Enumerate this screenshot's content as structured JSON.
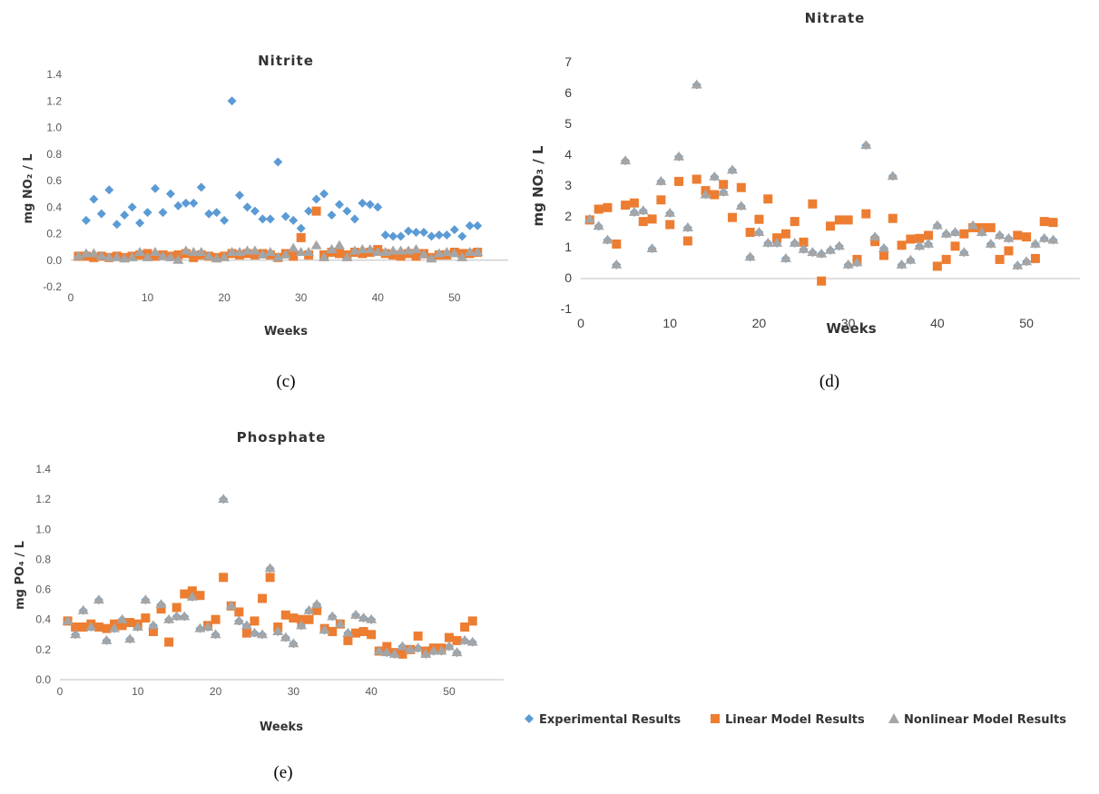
{
  "legend": {
    "experimental": "Experimental Results",
    "linear": "Linear Model Results",
    "nonlinear": "Nonlinear Model Results"
  },
  "colors": {
    "experimental": "#5B9BD5",
    "linear": "#ED7D31",
    "nonlinear": "#A5A5A5"
  },
  "chart_data": [
    {
      "type": "scatter",
      "id": "nitrite",
      "title": "Nitrite",
      "xlabel": "Weeks",
      "ylabel": "mg NO₂ / L",
      "caption": "(c)",
      "xlim": [
        0,
        57
      ],
      "ylim": [
        -0.2,
        1.4
      ],
      "xticks": [
        0,
        10,
        20,
        30,
        40,
        50
      ],
      "yticks": [
        "-0.2",
        "0.0",
        "0.2",
        "0.4",
        "0.6",
        "0.8",
        "1.0",
        "1.2",
        "1.4"
      ],
      "x": [
        1,
        2,
        3,
        4,
        5,
        6,
        7,
        8,
        9,
        10,
        11,
        12,
        13,
        14,
        15,
        16,
        17,
        18,
        19,
        20,
        21,
        22,
        23,
        24,
        25,
        26,
        27,
        28,
        29,
        30,
        31,
        32,
        33,
        34,
        35,
        36,
        37,
        38,
        39,
        40,
        41,
        42,
        43,
        44,
        45,
        46,
        47,
        48,
        49,
        50,
        51,
        52,
        53
      ],
      "series": [
        {
          "name": "Experimental Results",
          "values": [
            0.03,
            0.3,
            0.46,
            0.35,
            0.53,
            0.27,
            0.34,
            0.4,
            0.28,
            0.36,
            0.54,
            0.36,
            0.5,
            0.41,
            0.43,
            0.43,
            0.55,
            0.35,
            0.36,
            0.3,
            1.2,
            0.49,
            0.4,
            0.37,
            0.31,
            0.31,
            0.74,
            0.33,
            0.3,
            0.24,
            0.37,
            0.46,
            0.5,
            0.34,
            0.42,
            0.37,
            0.31,
            0.43,
            0.42,
            0.4,
            0.19,
            0.18,
            0.18,
            0.22,
            0.21,
            0.21,
            0.18,
            0.19,
            0.19,
            0.23,
            0.18,
            0.26,
            0.26
          ]
        },
        {
          "name": "Linear Model Results",
          "values": [
            0.03,
            0.03,
            0.02,
            0.03,
            0.02,
            0.03,
            0.02,
            0.03,
            0.04,
            0.05,
            0.03,
            0.04,
            0.03,
            0.04,
            0.05,
            0.02,
            0.04,
            0.03,
            0.02,
            0.03,
            0.05,
            0.04,
            0.05,
            0.04,
            0.05,
            0.04,
            0.02,
            0.05,
            0.03,
            0.17,
            0.04,
            0.37,
            0.04,
            0.06,
            0.05,
            0.04,
            0.06,
            0.05,
            0.06,
            0.08,
            0.05,
            0.04,
            0.03,
            0.05,
            0.03,
            0.05,
            0.02,
            0.04,
            0.04,
            0.06,
            0.05,
            0.05,
            0.06
          ]
        },
        {
          "name": "Nonlinear Model Results",
          "values": [
            0.03,
            0.05,
            0.05,
            0.03,
            0.02,
            0.02,
            0.01,
            0.02,
            0.06,
            0.02,
            0.06,
            0.03,
            0.02,
            0.0,
            0.07,
            0.06,
            0.06,
            0.03,
            0.01,
            0.02,
            0.06,
            0.06,
            0.07,
            0.07,
            0.04,
            0.06,
            0.02,
            0.04,
            0.09,
            0.06,
            0.06,
            0.11,
            0.02,
            0.08,
            0.11,
            0.02,
            0.07,
            0.08,
            0.08,
            0.06,
            0.06,
            0.07,
            0.07,
            0.07,
            0.08,
            0.04,
            0.01,
            0.05,
            0.06,
            0.05,
            0.02,
            0.06,
            0.06
          ]
        }
      ]
    },
    {
      "type": "scatter",
      "id": "nitrate",
      "title": "Nitrate",
      "xlabel": "Weeks",
      "ylabel": "mg NO₃ / L",
      "caption": "(d)",
      "xlim": [
        0,
        56
      ],
      "ylim": [
        -1,
        7
      ],
      "xticks": [
        0,
        10,
        20,
        30,
        40,
        50
      ],
      "yticks": [
        "-1",
        "0",
        "1",
        "2",
        "3",
        "4",
        "5",
        "6",
        "7"
      ],
      "x": [
        1,
        2,
        3,
        4,
        5,
        6,
        7,
        8,
        9,
        10,
        11,
        12,
        13,
        14,
        15,
        16,
        17,
        18,
        19,
        20,
        21,
        22,
        23,
        24,
        25,
        26,
        27,
        28,
        29,
        30,
        31,
        32,
        33,
        34,
        35,
        36,
        37,
        38,
        39,
        40,
        41,
        42,
        43,
        44,
        45,
        46,
        47,
        48,
        49,
        50,
        51,
        52,
        53
      ],
      "series": [
        {
          "name": "Experimental Results",
          "values": [
            1.92,
            1.7,
            1.25,
            0.45,
            3.82,
            2.15,
            2.2,
            0.97,
            3.15,
            2.12,
            3.95,
            1.65,
            6.28,
            2.72,
            3.3,
            2.8,
            3.52,
            2.35,
            0.7,
            1.5,
            1.15,
            1.15,
            0.65,
            1.15,
            0.95,
            0.85,
            0.8,
            0.92,
            1.05,
            0.45,
            0.52,
            4.32,
            1.35,
            0.98,
            3.32,
            0.45,
            0.6,
            1.05,
            1.12,
            1.72,
            1.45,
            1.5,
            0.85,
            1.72,
            1.5,
            1.12,
            1.4,
            1.3,
            0.42,
            0.55,
            1.12,
            1.3,
            1.25
          ]
        },
        {
          "name": "Linear Model Results",
          "values": [
            1.9,
            2.25,
            2.3,
            1.12,
            2.38,
            2.45,
            1.85,
            1.93,
            2.55,
            1.75,
            3.15,
            1.22,
            3.22,
            2.85,
            2.72,
            3.05,
            1.98,
            2.95,
            1.5,
            1.92,
            2.58,
            1.32,
            1.45,
            1.85,
            1.18,
            2.42,
            -0.08,
            1.7,
            1.9,
            1.9,
            0.62,
            2.1,
            1.2,
            0.75,
            1.95,
            1.08,
            1.28,
            1.3,
            1.4,
            0.4,
            0.62,
            1.05,
            1.45,
            1.65,
            1.65,
            1.65,
            0.62,
            0.9,
            1.4,
            1.35,
            0.65,
            1.85,
            1.82
          ]
        },
        {
          "name": "Nonlinear Model Results",
          "values": [
            1.92,
            1.7,
            1.25,
            0.45,
            3.82,
            2.15,
            2.2,
            0.97,
            3.15,
            2.12,
            3.95,
            1.65,
            6.28,
            2.72,
            3.3,
            2.8,
            3.52,
            2.35,
            0.7,
            1.5,
            1.15,
            1.15,
            0.65,
            1.15,
            0.95,
            0.85,
            0.8,
            0.92,
            1.05,
            0.45,
            0.52,
            4.32,
            1.35,
            0.98,
            3.32,
            0.45,
            0.6,
            1.05,
            1.12,
            1.72,
            1.45,
            1.5,
            0.85,
            1.72,
            1.5,
            1.12,
            1.4,
            1.3,
            0.42,
            0.55,
            1.12,
            1.3,
            1.25
          ]
        }
      ]
    },
    {
      "type": "scatter",
      "id": "phosphate",
      "title": "Phosphate",
      "xlabel": "Weeks",
      "ylabel": "mg PO₄ / L",
      "caption": "(e)",
      "xlim": [
        0,
        57
      ],
      "ylim": [
        0,
        1.4
      ],
      "xticks": [
        0,
        10,
        20,
        30,
        40,
        50
      ],
      "yticks": [
        "0.0",
        "0.2",
        "0.4",
        "0.6",
        "0.8",
        "1.0",
        "1.2",
        "1.4"
      ],
      "x": [
        1,
        2,
        3,
        4,
        5,
        6,
        7,
        8,
        9,
        10,
        11,
        12,
        13,
        14,
        15,
        16,
        17,
        18,
        19,
        20,
        21,
        22,
        23,
        24,
        25,
        26,
        27,
        28,
        29,
        30,
        31,
        32,
        33,
        34,
        35,
        36,
        37,
        38,
        39,
        40,
        41,
        42,
        43,
        44,
        45,
        46,
        47,
        48,
        49,
        50,
        51,
        52,
        53
      ],
      "series": [
        {
          "name": "Experimental Results",
          "values": [
            0.39,
            0.3,
            0.46,
            0.35,
            0.53,
            0.26,
            0.34,
            0.4,
            0.27,
            0.35,
            0.53,
            0.36,
            0.5,
            0.4,
            0.42,
            0.42,
            0.55,
            0.34,
            0.35,
            0.3,
            1.2,
            0.49,
            0.39,
            0.36,
            0.31,
            0.3,
            0.74,
            0.32,
            0.28,
            0.24,
            0.36,
            0.46,
            0.5,
            0.33,
            0.42,
            0.37,
            0.31,
            0.43,
            0.41,
            0.4,
            0.19,
            0.18,
            0.17,
            0.22,
            0.2,
            0.21,
            0.17,
            0.19,
            0.19,
            0.22,
            0.18,
            0.26,
            0.25
          ]
        },
        {
          "name": "Linear Model Results",
          "values": [
            0.39,
            0.35,
            0.35,
            0.37,
            0.35,
            0.34,
            0.37,
            0.36,
            0.38,
            0.37,
            0.41,
            0.32,
            0.47,
            0.25,
            0.48,
            0.57,
            0.59,
            0.56,
            0.36,
            0.4,
            0.68,
            0.49,
            0.45,
            0.31,
            0.39,
            0.54,
            0.68,
            0.35,
            0.43,
            0.41,
            0.4,
            0.4,
            0.46,
            0.34,
            0.32,
            0.37,
            0.26,
            0.31,
            0.32,
            0.3,
            0.19,
            0.22,
            0.18,
            0.17,
            0.2,
            0.29,
            0.19,
            0.21,
            0.21,
            0.28,
            0.26,
            0.35,
            0.39
          ]
        },
        {
          "name": "Nonlinear Model Results",
          "values": [
            0.39,
            0.3,
            0.46,
            0.35,
            0.53,
            0.26,
            0.34,
            0.4,
            0.27,
            0.35,
            0.53,
            0.36,
            0.5,
            0.4,
            0.42,
            0.42,
            0.55,
            0.34,
            0.35,
            0.3,
            1.2,
            0.49,
            0.39,
            0.36,
            0.31,
            0.3,
            0.74,
            0.32,
            0.28,
            0.24,
            0.36,
            0.46,
            0.5,
            0.33,
            0.42,
            0.37,
            0.31,
            0.43,
            0.41,
            0.4,
            0.19,
            0.18,
            0.17,
            0.22,
            0.2,
            0.21,
            0.17,
            0.19,
            0.19,
            0.22,
            0.18,
            0.26,
            0.25
          ]
        }
      ]
    }
  ]
}
